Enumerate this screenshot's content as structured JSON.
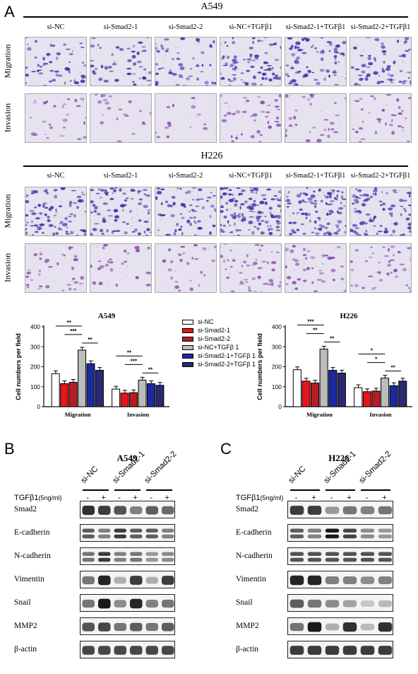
{
  "panel_a": {
    "letter": "A",
    "a549_title": "A549",
    "h226_title": "H226",
    "columns": [
      "si-NC",
      "si-Smad2-1",
      "si-Smad2-2",
      "si-NC+TGFβ1",
      "si-Smad2-1+TGFβ1",
      "si-Smad2-2+TGFβ1"
    ],
    "rows": [
      "Migration",
      "Invasion"
    ],
    "colors": {
      "migration": "#3b35a8",
      "invasion": "#8a4bb0",
      "background": "#e6e2ef"
    }
  },
  "chart_data": [
    {
      "type": "bar",
      "title": "A549",
      "ylabel": "Cell numbers per field",
      "ylim": [
        0,
        400
      ],
      "yticks": [
        0,
        100,
        200,
        300,
        400
      ],
      "categories": [
        "Migration",
        "Invasion"
      ],
      "series": [
        {
          "name": "si-NC",
          "color": "#ffffff",
          "values": [
            165,
            88
          ]
        },
        {
          "name": "si-Smad2-1",
          "color": "#e8141b",
          "values": [
            115,
            68
          ]
        },
        {
          "name": "si-Smad2-2",
          "color": "#b81c22",
          "values": [
            122,
            70
          ]
        },
        {
          "name": "si-NC+TGFβ 1",
          "color": "#bcbcbc",
          "values": [
            283,
            133
          ]
        },
        {
          "name": "si-Smad2-1+TGFβ 1",
          "color": "#1c2a9e",
          "values": [
            215,
            115
          ]
        },
        {
          "name": "si-Smad2-2+TGFβ 1",
          "color": "#2a2a72",
          "values": [
            182,
            107
          ]
        }
      ],
      "significance": [
        {
          "label": "**"
        },
        {
          "label": "***"
        },
        {
          "label": "**"
        },
        {
          "label": "**"
        },
        {
          "label": "***"
        },
        {
          "label": "**"
        }
      ]
    },
    {
      "type": "bar",
      "title": "H226",
      "ylabel": "Cell numbers per field",
      "ylim": [
        0,
        400
      ],
      "yticks": [
        0,
        100,
        200,
        300,
        400
      ],
      "categories": [
        "Migration",
        "Invasion"
      ],
      "series": [
        {
          "name": "si-NC",
          "color": "#ffffff",
          "values": [
            185,
            95
          ]
        },
        {
          "name": "si-Smad2-1",
          "color": "#e8141b",
          "values": [
            128,
            75
          ]
        },
        {
          "name": "si-Smad2-2",
          "color": "#b81c22",
          "values": [
            118,
            78
          ]
        },
        {
          "name": "si-NC+TGFβ 1",
          "color": "#bcbcbc",
          "values": [
            288,
            143
          ]
        },
        {
          "name": "si-Smad2-1+TGFβ 1",
          "color": "#1c2a9e",
          "values": [
            182,
            105
          ]
        },
        {
          "name": "si-Smad2-2+TGFβ 1",
          "color": "#2a2a72",
          "values": [
            168,
            128
          ]
        }
      ],
      "significance": [
        {
          "label": "***"
        },
        {
          "label": "**"
        },
        {
          "label": "**"
        },
        {
          "label": "*"
        },
        {
          "label": "*"
        },
        {
          "label": "**"
        }
      ]
    }
  ],
  "panel_b": {
    "letter": "B",
    "title": "A549",
    "groups": [
      "si-NC",
      "si-Smad2-1",
      "si-Smad2-2"
    ],
    "treatment_label": "TGFβ1",
    "treatment_unit": "(5ng/ml)",
    "signs": [
      "-",
      "+",
      "-",
      "+",
      "-",
      "+"
    ],
    "proteins": [
      "Smad2",
      "E-cadherin",
      "N-cadherin",
      "Vimentin",
      "Snail",
      "MMP2",
      "β-actin"
    ]
  },
  "panel_c": {
    "letter": "C",
    "title": "H226",
    "groups": [
      "si-NC",
      "si-Smad2-1",
      "si-Smad2-2"
    ],
    "treatment_label": "TGFβ1",
    "treatment_unit": "(5ng/ml)",
    "signs": [
      "-",
      "+",
      "-",
      "+",
      "-",
      "+"
    ],
    "proteins": [
      "Smad2",
      "E-cadherin",
      "N-cadherin",
      "Vimentin",
      "Snail",
      "MMP2",
      "β-actin"
    ]
  },
  "blot_intensity": {
    "a549": {
      "Smad2": [
        0.9,
        0.85,
        0.75,
        0.55,
        0.7,
        0.65
      ],
      "E-cadherin": [
        0.7,
        0.55,
        0.85,
        0.7,
        0.7,
        0.55
      ],
      "N-cadherin": [
        0.6,
        0.85,
        0.55,
        0.6,
        0.45,
        0.5
      ],
      "Vimentin": [
        0.6,
        0.95,
        0.35,
        0.85,
        0.35,
        0.85
      ],
      "Snail": [
        0.6,
        1.0,
        0.5,
        0.95,
        0.55,
        0.6
      ],
      "MMP2": [
        0.75,
        0.8,
        0.6,
        0.7,
        0.6,
        0.7
      ],
      "β-actin": [
        0.8,
        0.8,
        0.8,
        0.8,
        0.8,
        0.8
      ]
    },
    "h226": {
      "Smad2": [
        0.85,
        0.85,
        0.45,
        0.6,
        0.55,
        0.6
      ],
      "E-cadherin": [
        0.7,
        0.55,
        1.0,
        0.8,
        0.5,
        0.45
      ],
      "N-cadherin": [
        0.75,
        0.75,
        0.75,
        0.75,
        0.75,
        0.75
      ],
      "Vimentin": [
        0.95,
        0.95,
        0.55,
        0.55,
        0.5,
        0.55
      ],
      "Snail": [
        0.7,
        0.6,
        0.5,
        0.4,
        0.25,
        0.3
      ],
      "MMP2": [
        0.6,
        1.0,
        0.35,
        0.9,
        0.3,
        0.9
      ],
      "β-actin": [
        0.85,
        0.85,
        0.85,
        0.85,
        0.85,
        0.85
      ]
    }
  }
}
